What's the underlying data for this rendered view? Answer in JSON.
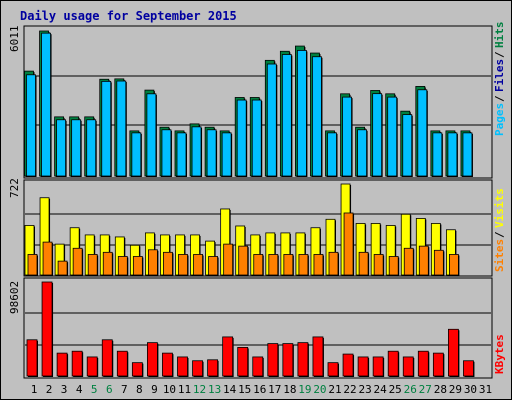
{
  "title": "Daily usage for September 2015",
  "colors": {
    "hits": "#008040",
    "files": "#0000a0",
    "pages": "#00c0ff",
    "visits": "#ffff00",
    "sites": "#ff8000",
    "kbytes": "#ff0000",
    "weekend_label": "#008040",
    "weekday_label": "#000000"
  },
  "chart_data": [
    {
      "type": "bar",
      "title": "Daily usage for September 2015",
      "max_label": "6011",
      "ylim": [
        0,
        6011
      ],
      "categories": [
        "1",
        "2",
        "3",
        "4",
        "5",
        "6",
        "7",
        "8",
        "9",
        "10",
        "11",
        "12",
        "13",
        "14",
        "15",
        "16",
        "17",
        "18",
        "19",
        "20",
        "21",
        "22",
        "23",
        "24",
        "25",
        "26",
        "27",
        "28",
        "29",
        "30",
        "31"
      ],
      "weekend_days": [
        "5",
        "6",
        "12",
        "13",
        "19",
        "20",
        "26",
        "27"
      ],
      "legend": [
        {
          "label": "Hits",
          "color": "#008040"
        },
        {
          "label": "Files",
          "color": "#0000a0"
        },
        {
          "label": "Pages",
          "color": "#00c0ff"
        }
      ],
      "series": [
        {
          "name": "Hits",
          "values": [
            4318,
            5970,
            2435,
            2435,
            2435,
            3984,
            3999,
            1858,
            3536,
            2009,
            1858,
            2146,
            2009,
            1858,
            3233,
            3233,
            4762,
            5135,
            5350,
            5062,
            1858,
            3384,
            2009,
            3521,
            3384,
            2669,
            3688,
            1858,
            1858,
            1858,
            0
          ]
        },
        {
          "name": "Pages",
          "values": [
            4167,
            5880,
            2315,
            2315,
            2315,
            3895,
            3910,
            1776,
            3384,
            1903,
            1776,
            2024,
            1903,
            1776,
            3127,
            3127,
            4610,
            5001,
            5170,
            4910,
            1776,
            3248,
            1903,
            3390,
            3248,
            2527,
            3550,
            1776,
            1776,
            1776,
            0
          ]
        }
      ]
    },
    {
      "type": "bar",
      "max_label": "722",
      "ylim": [
        0,
        722
      ],
      "legend": [
        {
          "label": "Visits",
          "color": "#ffff00"
        },
        {
          "label": "Sites",
          "color": "#ff8000"
        }
      ],
      "series": [
        {
          "name": "Visits",
          "values": [
            393,
            613,
            245,
            375,
            318,
            318,
            302,
            236,
            334,
            318,
            318,
            318,
            269,
            524,
            389,
            318,
            334,
            334,
            334,
            375,
            442,
            722,
            409,
            409,
            393,
            482,
            449,
            409,
            359,
            0,
            0
          ]
        },
        {
          "name": "Sites",
          "values": [
            163,
            261,
            110,
            212,
            163,
            180,
            147,
            147,
            200,
            180,
            163,
            163,
            147,
            245,
            229,
            163,
            163,
            163,
            163,
            163,
            180,
            492,
            180,
            163,
            147,
            212,
            229,
            196,
            163,
            0,
            0
          ]
        }
      ]
    },
    {
      "type": "bar",
      "max_label": "98602",
      "ylim": [
        0,
        98602
      ],
      "legend": [
        {
          "label": "KBytes",
          "color": "#ff0000"
        }
      ],
      "series": [
        {
          "name": "KBytes",
          "values": [
            38000,
            98602,
            24000,
            26000,
            20000,
            38000,
            26000,
            14000,
            35000,
            24000,
            20000,
            16000,
            17000,
            41000,
            30000,
            20000,
            34000,
            34000,
            35000,
            41000,
            14000,
            23000,
            20000,
            20000,
            26000,
            20000,
            26000,
            24000,
            49000,
            16000,
            0
          ]
        }
      ]
    }
  ]
}
